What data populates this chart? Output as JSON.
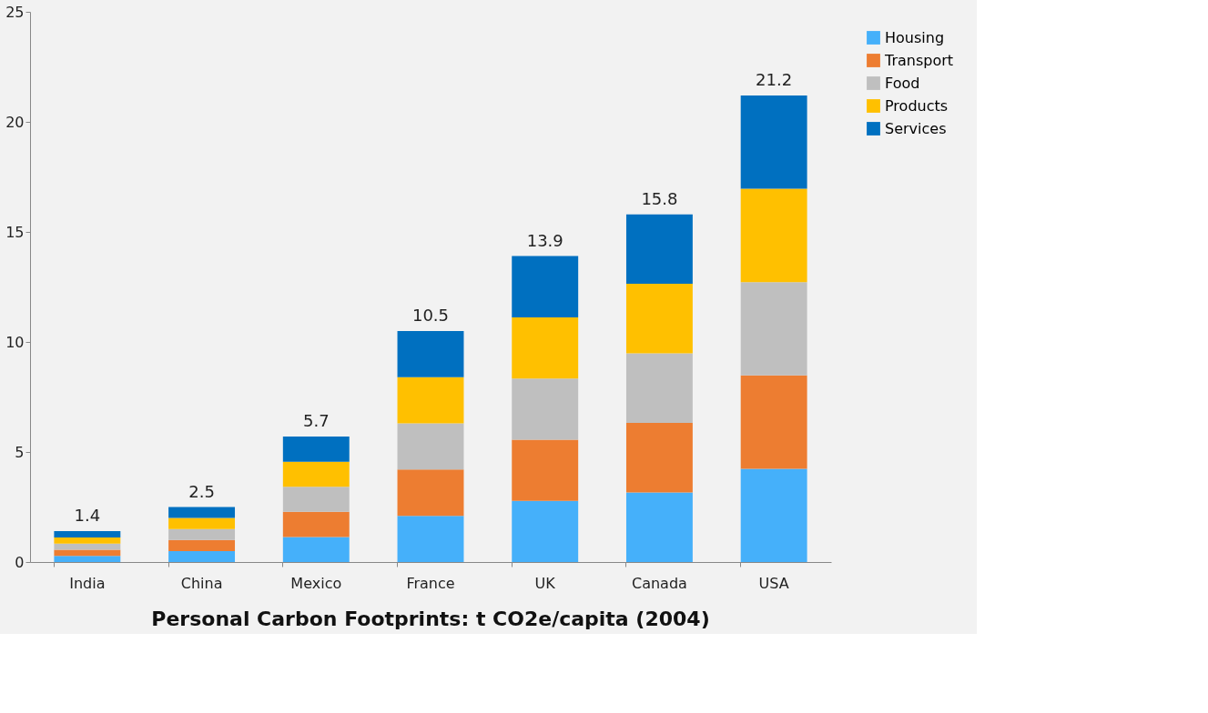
{
  "chart_data": {
    "type": "bar",
    "title": "Personal Carbon Footprints: t CO2e/capita (2004)",
    "categories": [
      "India",
      "China",
      "Mexico",
      "France",
      "UK",
      "Canada",
      "USA"
    ],
    "stacked": true,
    "series": [
      {
        "name": "Housing",
        "color": "#45b0fa",
        "values": [
          0.28,
          0.5,
          1.14,
          2.1,
          2.78,
          3.16,
          4.24
        ]
      },
      {
        "name": "Transport",
        "color": "#ed7d31",
        "values": [
          0.28,
          0.5,
          1.14,
          2.1,
          2.78,
          3.16,
          4.24
        ]
      },
      {
        "name": "Food",
        "color": "#bfbfbf",
        "values": [
          0.28,
          0.5,
          1.14,
          2.1,
          2.78,
          3.16,
          4.24
        ]
      },
      {
        "name": "Products",
        "color": "#ffc000",
        "values": [
          0.28,
          0.5,
          1.14,
          2.1,
          2.78,
          3.16,
          4.24
        ]
      },
      {
        "name": "Services",
        "color": "#0070c0",
        "values": [
          0.28,
          0.5,
          1.14,
          2.1,
          2.78,
          3.16,
          4.24
        ]
      }
    ],
    "totals": [
      "1.4",
      "2.5",
      "5.7",
      "10.5",
      "13.9",
      "15.8",
      "21.2"
    ],
    "ylim": [
      0,
      25
    ],
    "yticks": [
      0,
      5,
      10,
      15,
      20,
      25
    ],
    "grid": false,
    "legend": "right"
  }
}
